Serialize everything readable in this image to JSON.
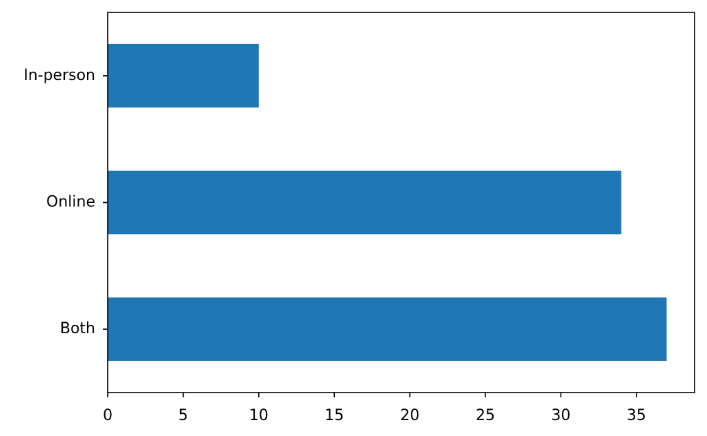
{
  "chart_data": {
    "type": "barh",
    "categories": [
      "Both",
      "Online",
      "In-person"
    ],
    "values": [
      37,
      34,
      10
    ],
    "color": "#1f77b4",
    "xlim": [
      0,
      38.85
    ],
    "xticks": [
      0,
      5,
      10,
      15,
      20,
      25,
      30,
      35
    ],
    "grid": false
  }
}
